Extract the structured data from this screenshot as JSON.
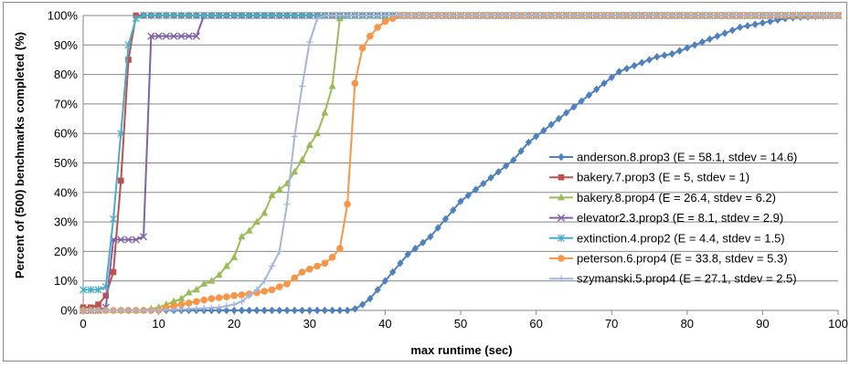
{
  "chart_data": {
    "type": "line",
    "xlabel": "max runtime (sec)",
    "ylabel": "Percent of (500) benchmarks completed (%)",
    "xlim": [
      0,
      100
    ],
    "ylim": [
      0,
      100
    ],
    "x_ticks": [
      "0",
      "10",
      "20",
      "30",
      "40",
      "50",
      "60",
      "70",
      "80",
      "90",
      "100"
    ],
    "y_ticks": [
      "0%",
      "10%",
      "20%",
      "30%",
      "40%",
      "50%",
      "60%",
      "70%",
      "80%",
      "90%",
      "100%"
    ],
    "grid": "horizontal",
    "legend_position": "right",
    "series": [
      {
        "name": "anderson.8.prop3 (E = 58.1, stdev = 14.6)",
        "color": "#4f81bd",
        "marker": "diamond",
        "points": [
          [
            0,
            0
          ],
          [
            35,
            0
          ],
          [
            36,
            0.5
          ],
          [
            37,
            2
          ],
          [
            38,
            4
          ],
          [
            39,
            7
          ],
          [
            40,
            10
          ],
          [
            41,
            13
          ],
          [
            42,
            16
          ],
          [
            43,
            19
          ],
          [
            44,
            21
          ],
          [
            45,
            23
          ],
          [
            46,
            25
          ],
          [
            47,
            28
          ],
          [
            48,
            31
          ],
          [
            49,
            34
          ],
          [
            50,
            37
          ],
          [
            51,
            39
          ],
          [
            52,
            41
          ],
          [
            53,
            43
          ],
          [
            54,
            45
          ],
          [
            55,
            47
          ],
          [
            56,
            49
          ],
          [
            57,
            51
          ],
          [
            58,
            54
          ],
          [
            59,
            57
          ],
          [
            60,
            59
          ],
          [
            61,
            61
          ],
          [
            62,
            63
          ],
          [
            63,
            65
          ],
          [
            64,
            67
          ],
          [
            65,
            69
          ],
          [
            66,
            71
          ],
          [
            67,
            73
          ],
          [
            68,
            75
          ],
          [
            69,
            77
          ],
          [
            70,
            79
          ],
          [
            71,
            81
          ],
          [
            72,
            82
          ],
          [
            73,
            83
          ],
          [
            74,
            84
          ],
          [
            75,
            85
          ],
          [
            76,
            86
          ],
          [
            77,
            86.5
          ],
          [
            78,
            87
          ],
          [
            79,
            88
          ],
          [
            80,
            89
          ],
          [
            81,
            90
          ],
          [
            82,
            91
          ],
          [
            83,
            92
          ],
          [
            84,
            93
          ],
          [
            85,
            94
          ],
          [
            86,
            95
          ],
          [
            87,
            96
          ],
          [
            88,
            96.5
          ],
          [
            89,
            97
          ],
          [
            90,
            97.5
          ],
          [
            91,
            98
          ],
          [
            92,
            98.5
          ],
          [
            93,
            99
          ],
          [
            94,
            99.3
          ],
          [
            95,
            99.5
          ],
          [
            97,
            99.7
          ],
          [
            100,
            100
          ]
        ]
      },
      {
        "name": "bakery.7.prop3 (E = 5, stdev = 1)",
        "color": "#c0504d",
        "marker": "square",
        "points": [
          [
            0,
            1
          ],
          [
            1,
            1
          ],
          [
            2,
            2
          ],
          [
            3,
            5
          ],
          [
            4,
            13
          ],
          [
            5,
            44
          ],
          [
            6,
            85
          ],
          [
            7,
            100
          ],
          [
            100,
            100
          ]
        ]
      },
      {
        "name": "bakery.8.prop4 (E = 26.4, stdev = 6.2)",
        "color": "#9bbb59",
        "marker": "triangle",
        "points": [
          [
            0,
            0
          ],
          [
            8,
            0
          ],
          [
            9,
            0.5
          ],
          [
            10,
            1
          ],
          [
            11,
            2
          ],
          [
            12,
            3
          ],
          [
            13,
            4
          ],
          [
            14,
            6
          ],
          [
            15,
            7
          ],
          [
            16,
            9
          ],
          [
            17,
            10
          ],
          [
            18,
            12
          ],
          [
            19,
            15
          ],
          [
            20,
            18
          ],
          [
            21,
            25
          ],
          [
            22,
            27
          ],
          [
            23,
            30
          ],
          [
            24,
            33
          ],
          [
            25,
            39
          ],
          [
            26,
            41
          ],
          [
            27,
            43
          ],
          [
            28,
            47
          ],
          [
            29,
            51
          ],
          [
            30,
            56
          ],
          [
            31,
            60
          ],
          [
            32,
            67
          ],
          [
            33,
            76
          ],
          [
            34,
            99
          ],
          [
            35,
            100
          ],
          [
            100,
            100
          ]
        ]
      },
      {
        "name": "elevator2.3.prop3 (E = 8.1, stdev = 2.9)",
        "color": "#8064a2",
        "marker": "x",
        "points": [
          [
            0,
            0
          ],
          [
            2,
            0
          ],
          [
            3,
            1
          ],
          [
            4,
            24
          ],
          [
            5,
            24
          ],
          [
            6,
            24
          ],
          [
            7,
            24
          ],
          [
            8,
            25
          ],
          [
            9,
            93
          ],
          [
            10,
            93
          ],
          [
            11,
            93
          ],
          [
            12,
            93
          ],
          [
            13,
            93
          ],
          [
            14,
            93
          ],
          [
            15,
            93
          ],
          [
            16,
            100
          ],
          [
            100,
            100
          ]
        ]
      },
      {
        "name": "extinction.4.prop2 (E = 4.4, stdev = 1.5)",
        "color": "#4bacc6",
        "marker": "star",
        "points": [
          [
            0,
            7
          ],
          [
            1,
            7
          ],
          [
            2,
            7
          ],
          [
            3,
            8
          ],
          [
            4,
            31
          ],
          [
            5,
            60
          ],
          [
            6,
            90
          ],
          [
            7,
            99
          ],
          [
            8,
            100
          ],
          [
            100,
            100
          ]
        ]
      },
      {
        "name": "peterson.6.prop4 (E = 33.8, stdev = 5.3)",
        "color": "#f79646",
        "marker": "circle",
        "points": [
          [
            0,
            0
          ],
          [
            10,
            0
          ],
          [
            11,
            1
          ],
          [
            12,
            1.5
          ],
          [
            13,
            2
          ],
          [
            14,
            2.5
          ],
          [
            15,
            3
          ],
          [
            16,
            3.5
          ],
          [
            17,
            4
          ],
          [
            18,
            4.3
          ],
          [
            19,
            4.6
          ],
          [
            20,
            5
          ],
          [
            21,
            5.3
          ],
          [
            22,
            5.6
          ],
          [
            23,
            6
          ],
          [
            24,
            6.5
          ],
          [
            25,
            7
          ],
          [
            26,
            8
          ],
          [
            27,
            9
          ],
          [
            28,
            11
          ],
          [
            29,
            13
          ],
          [
            30,
            14
          ],
          [
            31,
            15
          ],
          [
            32,
            16
          ],
          [
            33,
            18
          ],
          [
            34,
            21
          ],
          [
            35,
            36
          ],
          [
            36,
            77
          ],
          [
            37,
            89
          ],
          [
            38,
            93
          ],
          [
            39,
            96
          ],
          [
            40,
            98
          ],
          [
            41,
            99
          ],
          [
            42,
            100
          ],
          [
            100,
            100
          ]
        ]
      },
      {
        "name": "szymanski.5.prop4 (E = 27.1, stdev = 2.5)",
        "color": "#a5b6d9",
        "marker": "plus",
        "points": [
          [
            0,
            0
          ],
          [
            10,
            0
          ],
          [
            14,
            0.5
          ],
          [
            18,
            1
          ],
          [
            20,
            2
          ],
          [
            21,
            3
          ],
          [
            22,
            5
          ],
          [
            23,
            7
          ],
          [
            24,
            10
          ],
          [
            25,
            15
          ],
          [
            26,
            20
          ],
          [
            27,
            36
          ],
          [
            28,
            59
          ],
          [
            29,
            76
          ],
          [
            30,
            91
          ],
          [
            31,
            99
          ],
          [
            32,
            100
          ],
          [
            100,
            100
          ]
        ]
      }
    ]
  }
}
